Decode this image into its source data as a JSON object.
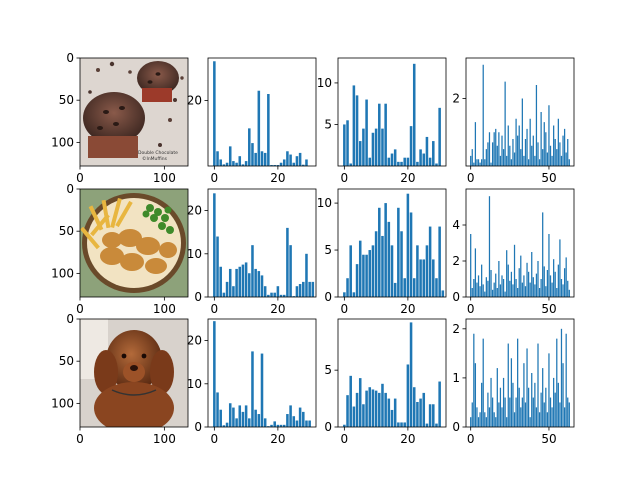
{
  "colors": {
    "bar": "#1f77b4",
    "axis": "#000000",
    "background": "#ffffff"
  },
  "rows": [
    {
      "image": {
        "subject": "muffins",
        "caption_line1": "Double Chocolate",
        "caption_line2": "©InMuffins",
        "xticks": [
          0,
          100
        ],
        "yticks": [
          0,
          50,
          100
        ]
      },
      "charts": [
        {
          "type": "bar",
          "xlim": [
            -2,
            32
          ],
          "ylim": [
            0,
            33
          ],
          "xticks": [
            0,
            20
          ],
          "yticks": [
            20
          ],
          "values": [
            32,
            4.5,
            2,
            0.5,
            1,
            6,
            1.5,
            1,
            3,
            0.5,
            1.5,
            11.5,
            7,
            4,
            23,
            4.5,
            4,
            22,
            0.3,
            0.3,
            0.3,
            1,
            2,
            4.5,
            3.5,
            1,
            3,
            4,
            0.4,
            2
          ]
        },
        {
          "type": "bar",
          "xlim": [
            -2,
            32
          ],
          "ylim": [
            0,
            13
          ],
          "xticks": [
            0,
            20
          ],
          "yticks": [
            5,
            10
          ],
          "values": [
            5,
            5.5,
            0.3,
            9.7,
            8.5,
            3,
            4.5,
            8,
            1,
            4,
            4.5,
            7.5,
            4.5,
            7.5,
            1,
            1.5,
            2,
            0.5,
            0.5,
            1,
            1,
            4.8,
            12.3,
            0.5,
            2,
            1.5,
            3.5,
            1,
            3,
            0.3,
            7
          ]
        },
        {
          "type": "bar",
          "xlim": [
            -3,
            66
          ],
          "ylim": [
            0,
            3.2
          ],
          "xticks": [
            0,
            50
          ],
          "yticks": [
            2
          ],
          "values": [
            0.3,
            0.5,
            0.1,
            1.3,
            0.2,
            0.2,
            0.1,
            0.2,
            3.0,
            0.2,
            0.5,
            0.7,
            1.0,
            0.1,
            0.7,
            1.0,
            1.1,
            0.6,
            1.0,
            0.3,
            0.9,
            0.5,
            2.5,
            0.3,
            1.2,
            0.6,
            0.2,
            0.8,
            0.4,
            1.4,
            0.9,
            1.2,
            0.5,
            2.0,
            0.3,
            0.8,
            1.1,
            0.2,
            1.4,
            0.6,
            0.9,
            0.3,
            2.4,
            0.7,
            0.2,
            1.6,
            0.5,
            1.3,
            1.0,
            0.4,
            1.8,
            0.6,
            0.3,
            1.2,
            0.8,
            0.5,
            1.4,
            0.7,
            0.3,
            0.9,
            1.1,
            0.4,
            0.8,
            0.2
          ]
        }
      ]
    },
    {
      "image": {
        "subject": "chicken nuggets and fries",
        "xticks": [
          0,
          100
        ],
        "yticks": [
          0,
          50,
          100
        ]
      },
      "charts": [
        {
          "type": "bar",
          "xlim": [
            -2,
            32
          ],
          "ylim": [
            0,
            25
          ],
          "xticks": [
            0,
            20
          ],
          "yticks": [
            0,
            10,
            20
          ],
          "values": [
            24,
            14,
            7,
            1,
            3.5,
            6.5,
            2.5,
            6.5,
            7,
            7.5,
            8,
            5.5,
            12,
            6.5,
            6,
            5,
            2.5,
            0.5,
            1,
            1,
            2.5,
            0.5,
            0.5,
            16,
            12,
            0.2,
            2.5,
            3,
            3.5,
            10,
            3.5,
            3.5
          ]
        },
        {
          "type": "bar",
          "xlim": [
            -2,
            32
          ],
          "ylim": [
            0,
            11.5
          ],
          "xticks": [
            0,
            20
          ],
          "yticks": [
            0,
            5,
            10
          ],
          "values": [
            0.5,
            2,
            5.5,
            0.5,
            3.5,
            6,
            4.5,
            4.5,
            5,
            5.5,
            7,
            9.5,
            6.5,
            10,
            8,
            5.5,
            1.5,
            9.5,
            7,
            2,
            11,
            9,
            2,
            5.5,
            4,
            4,
            5.5,
            7.5,
            4,
            2,
            7.5,
            0.7
          ]
        },
        {
          "type": "bar",
          "xlim": [
            -3,
            66
          ],
          "ylim": [
            0,
            6
          ],
          "xticks": [
            0,
            50
          ],
          "yticks": [
            0,
            2,
            4
          ],
          "values": [
            3.5,
            0.5,
            1.0,
            2.7,
            0.8,
            1.2,
            0.6,
            1.8,
            0.7,
            0.3,
            1.1,
            0.9,
            5.6,
            1.5,
            0.4,
            0.8,
            1.3,
            0.5,
            2.0,
            0.7,
            1.2,
            1.0,
            0.3,
            2.6,
            1.8,
            0.9,
            1.4,
            0.7,
            2.9,
            1.0,
            0.5,
            1.6,
            2.3,
            0.8,
            1.2,
            0.6,
            1.9,
            1.4,
            0.8,
            2.5,
            1.1,
            0.7,
            1.3,
            2.0,
            0.5,
            1.0,
            4.7,
            1.7,
            0.6,
            1.5,
            3.5,
            1.2,
            0.8,
            2.1,
            1.4,
            0.5,
            1.8,
            3.2,
            1.0,
            0.7,
            1.6,
            2.2,
            0.9,
            0.4
          ]
        }
      ]
    },
    {
      "image": {
        "subject": "poodle",
        "xticks": [
          0,
          100
        ],
        "yticks": [
          0,
          50,
          100
        ]
      },
      "charts": [
        {
          "type": "bar",
          "xlim": [
            -2,
            32
          ],
          "ylim": [
            0,
            25
          ],
          "xticks": [
            0,
            20
          ],
          "yticks": [
            0,
            10,
            20
          ],
          "values": [
            24.5,
            8,
            4,
            0.4,
            1,
            5.5,
            4.5,
            2,
            5,
            3.5,
            5,
            2,
            17.5,
            4,
            3,
            17,
            2,
            0.2,
            0.5,
            1.3,
            0.5,
            0.5,
            0.5,
            3,
            5,
            2.5,
            1.5,
            4.5,
            3.5,
            1.5,
            1.5
          ]
        },
        {
          "type": "bar",
          "xlim": [
            -2,
            32
          ],
          "ylim": [
            0,
            9.5
          ],
          "xticks": [
            0,
            20
          ],
          "yticks": [
            0,
            5
          ],
          "values": [
            0.2,
            2.8,
            4.5,
            1.8,
            3,
            4.3,
            2,
            3.2,
            3.5,
            3.3,
            3.2,
            3,
            3.8,
            3,
            2.5,
            1.5,
            2.5,
            0.4,
            0.4,
            0.4,
            5.5,
            9.2,
            3.5,
            2.2,
            2.5,
            3,
            0.3,
            2,
            2,
            0.3,
            4
          ]
        },
        {
          "type": "bar",
          "xlim": [
            -3,
            66
          ],
          "ylim": [
            0,
            2.2
          ],
          "xticks": [
            0,
            50
          ],
          "yticks": [
            0,
            1,
            2
          ],
          "values": [
            0.2,
            0.5,
            1.9,
            1.3,
            0.4,
            0.2,
            0.3,
            0.9,
            1.8,
            0.3,
            0.2,
            0.7,
            0.4,
            1.0,
            0.6,
            0.3,
            0.2,
            1.2,
            0.5,
            0.8,
            0.4,
            1.0,
            0.6,
            0.2,
            1.7,
            0.6,
            1.4,
            0.9,
            0.3,
            0.6,
            1.8,
            0.8,
            0.4,
            0.6,
            1.3,
            0.5,
            1.6,
            0.8,
            0.2,
            1.1,
            0.6,
            0.9,
            0.4,
            1.7,
            0.3,
            0.7,
            1.2,
            0.5,
            0.8,
            0.3,
            1.5,
            0.6,
            0.4,
            1.0,
            0.7,
            1.8,
            0.9,
            0.5,
            2.0,
            1.3,
            0.4,
            1.9,
            0.6,
            0.5
          ]
        }
      ]
    }
  ]
}
